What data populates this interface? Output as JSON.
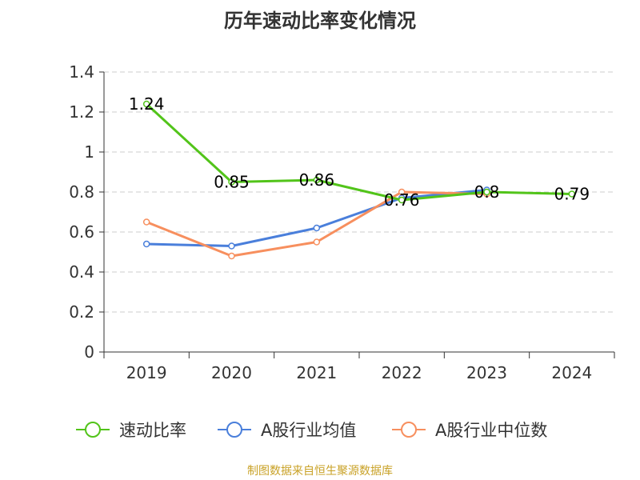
{
  "title": "历年速动比率变化情况",
  "source": "制图数据来自恒生聚源数据库",
  "chart_data": {
    "type": "line",
    "title": "历年速动比率变化情况",
    "categories": [
      "2019",
      "2020",
      "2021",
      "2022",
      "2023",
      "2024"
    ],
    "ylim": [
      0,
      1.4
    ],
    "yticks": [
      "0",
      "0.2",
      "0.4",
      "0.6",
      "0.8",
      "1",
      "1.2",
      "1.4"
    ],
    "grid": true,
    "legend_position": "bottom",
    "series": [
      {
        "name": "速动比率",
        "color": "#52c41a",
        "values": [
          1.24,
          0.85,
          0.86,
          0.76,
          0.8,
          0.79
        ],
        "labels": [
          "1.24",
          "0.85",
          "0.86",
          "0.76",
          "0.8",
          "0.79"
        ]
      },
      {
        "name": "A股行业均值",
        "color": "#4a7fdb",
        "values": [
          0.54,
          0.53,
          0.62,
          0.77,
          0.81,
          null
        ]
      },
      {
        "name": "A股行业中位数",
        "color": "#f78f5e",
        "values": [
          0.65,
          0.48,
          0.55,
          0.8,
          0.79,
          null
        ]
      }
    ]
  }
}
